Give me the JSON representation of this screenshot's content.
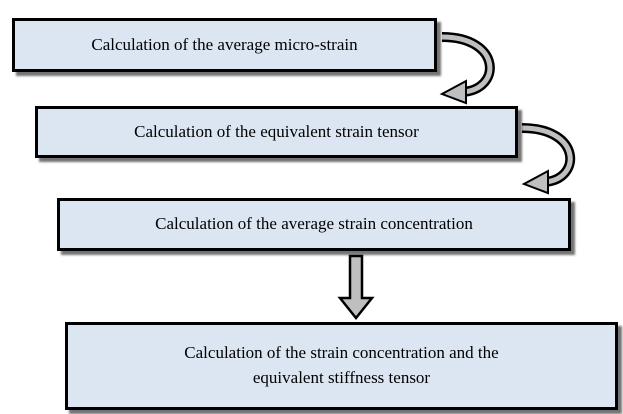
{
  "nodes": [
    {
      "label": "Calculation of the average micro-strain"
    },
    {
      "label": "Calculation of the equivalent strain tensor"
    },
    {
      "label": "Calculation of the average strain concentration"
    },
    {
      "label": "Calculation of the strain concentration and the equivalent stiffness tensor"
    }
  ]
}
